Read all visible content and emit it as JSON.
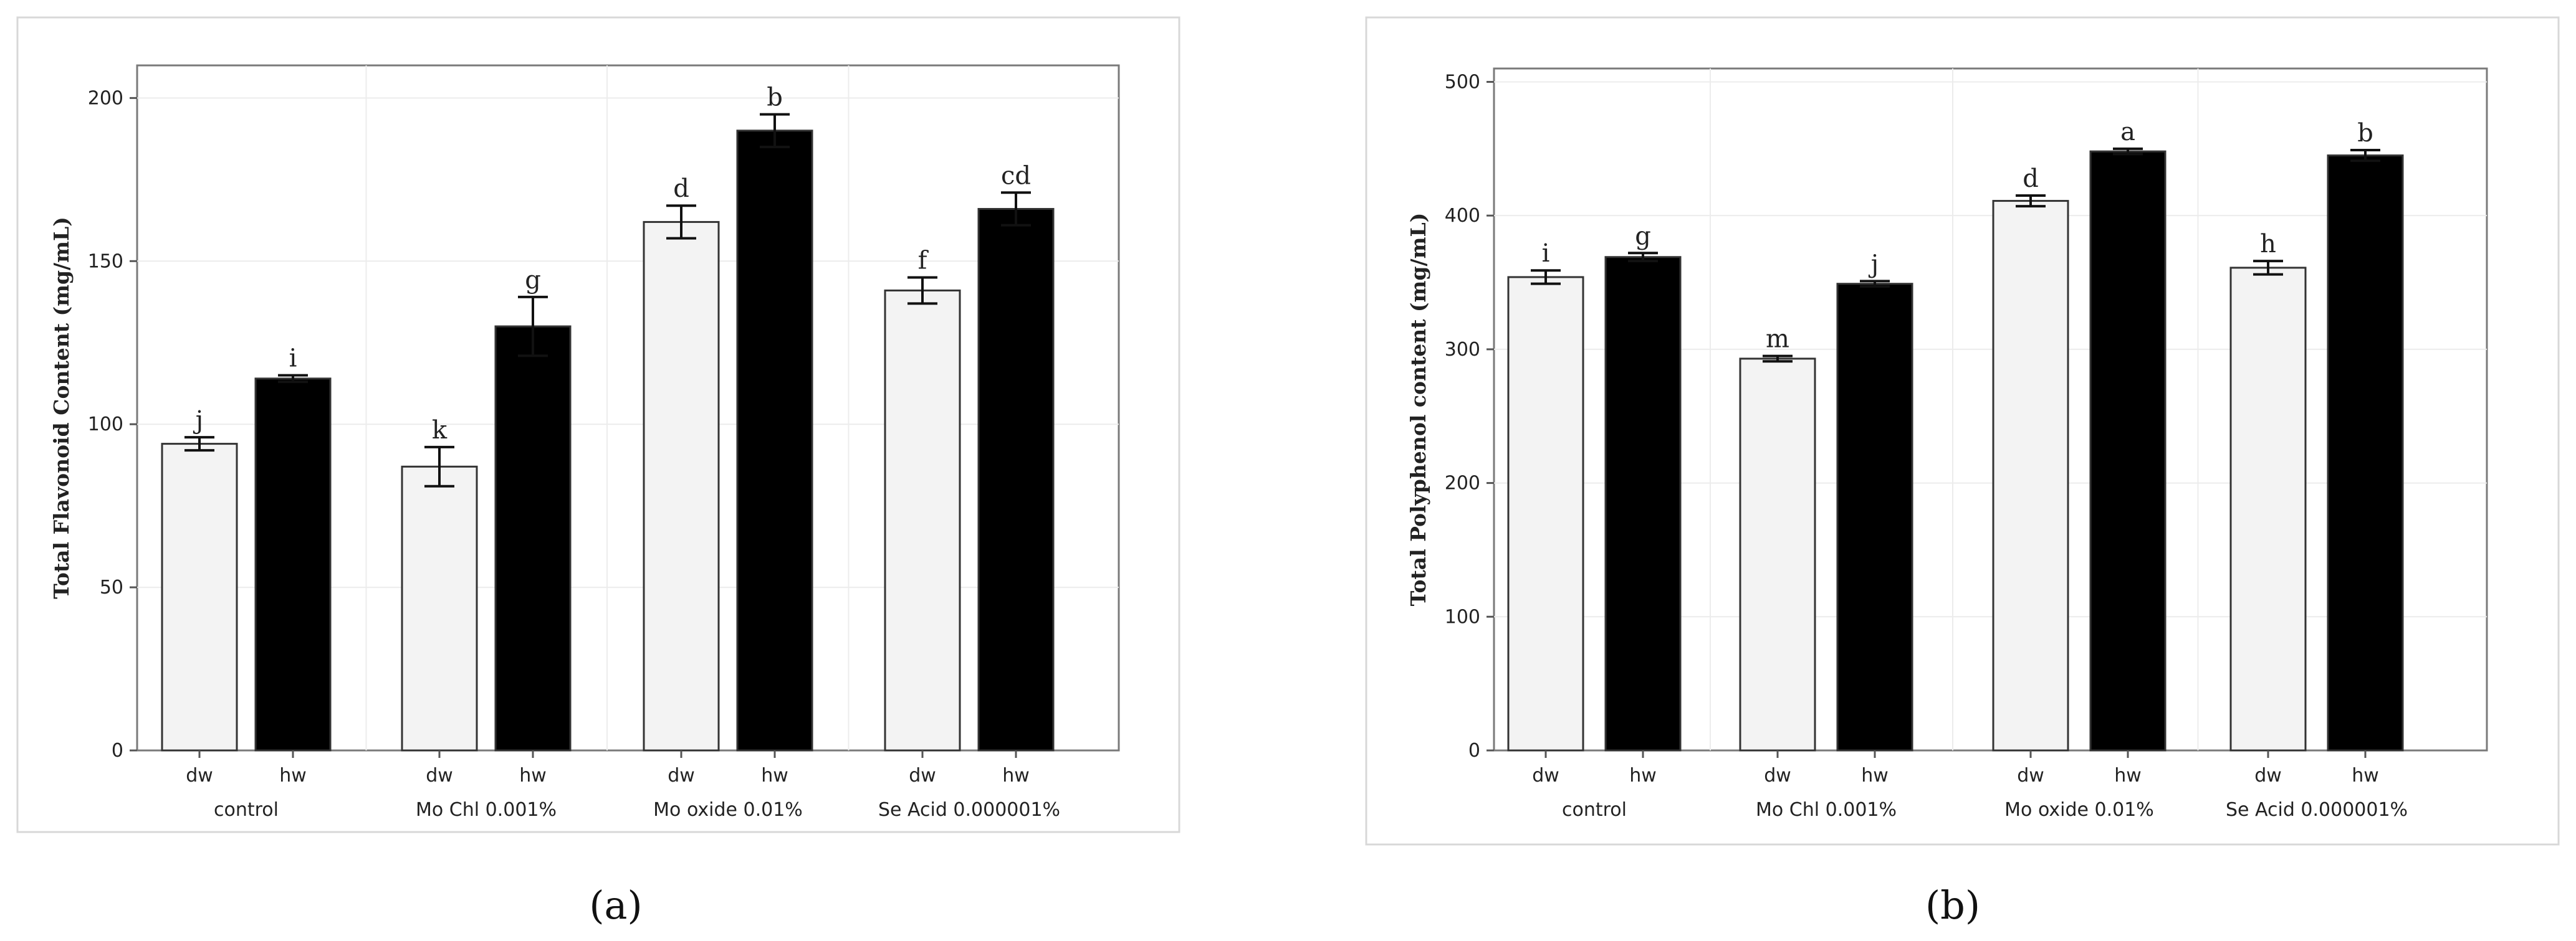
{
  "chart_data": [
    {
      "panel": "(a)",
      "type": "bar",
      "ylabel": "Total Flavonoid Content (mg/mL)",
      "ylim": [
        0,
        210
      ],
      "yticks": [
        0,
        50,
        100,
        150,
        200
      ],
      "groups": [
        "control",
        "Mo Chl 0.001%",
        "Mo oxide 0.01%",
        "Se Acid 0.000001%"
      ],
      "bar_labels": [
        "dw",
        "hw"
      ],
      "series": [
        {
          "name": "dw",
          "color": "#f3f3f3",
          "values": [
            94,
            87,
            162,
            141
          ],
          "errors": [
            2,
            6,
            5,
            4
          ],
          "letters": [
            "j",
            "k",
            "d",
            "f"
          ]
        },
        {
          "name": "hw",
          "color": "#000000",
          "values": [
            114,
            130,
            190,
            166
          ],
          "errors": [
            1,
            9,
            5,
            5
          ],
          "letters": [
            "i",
            "g",
            "b",
            "cd"
          ]
        }
      ],
      "grid": true
    },
    {
      "panel": "(b)",
      "type": "bar",
      "ylabel": "Total Polyphenol content (mg/mL)",
      "ylim": [
        0,
        510
      ],
      "yticks": [
        0,
        100,
        200,
        300,
        400,
        500
      ],
      "groups": [
        "control",
        "Mo Chl 0.001%",
        "Mo oxide 0.01%",
        "Se Acid 0.000001%"
      ],
      "bar_labels": [
        "dw",
        "hw"
      ],
      "series": [
        {
          "name": "dw",
          "color": "#f3f3f3",
          "values": [
            354,
            293,
            411,
            361
          ],
          "errors": [
            5,
            2,
            4,
            5
          ],
          "letters": [
            "i",
            "m",
            "d",
            "h"
          ]
        },
        {
          "name": "hw",
          "color": "#000000",
          "values": [
            369,
            349,
            448,
            445
          ],
          "errors": [
            3,
            2,
            2,
            4
          ],
          "letters": [
            "g",
            "j",
            "a",
            "b"
          ]
        }
      ],
      "grid": true
    }
  ]
}
